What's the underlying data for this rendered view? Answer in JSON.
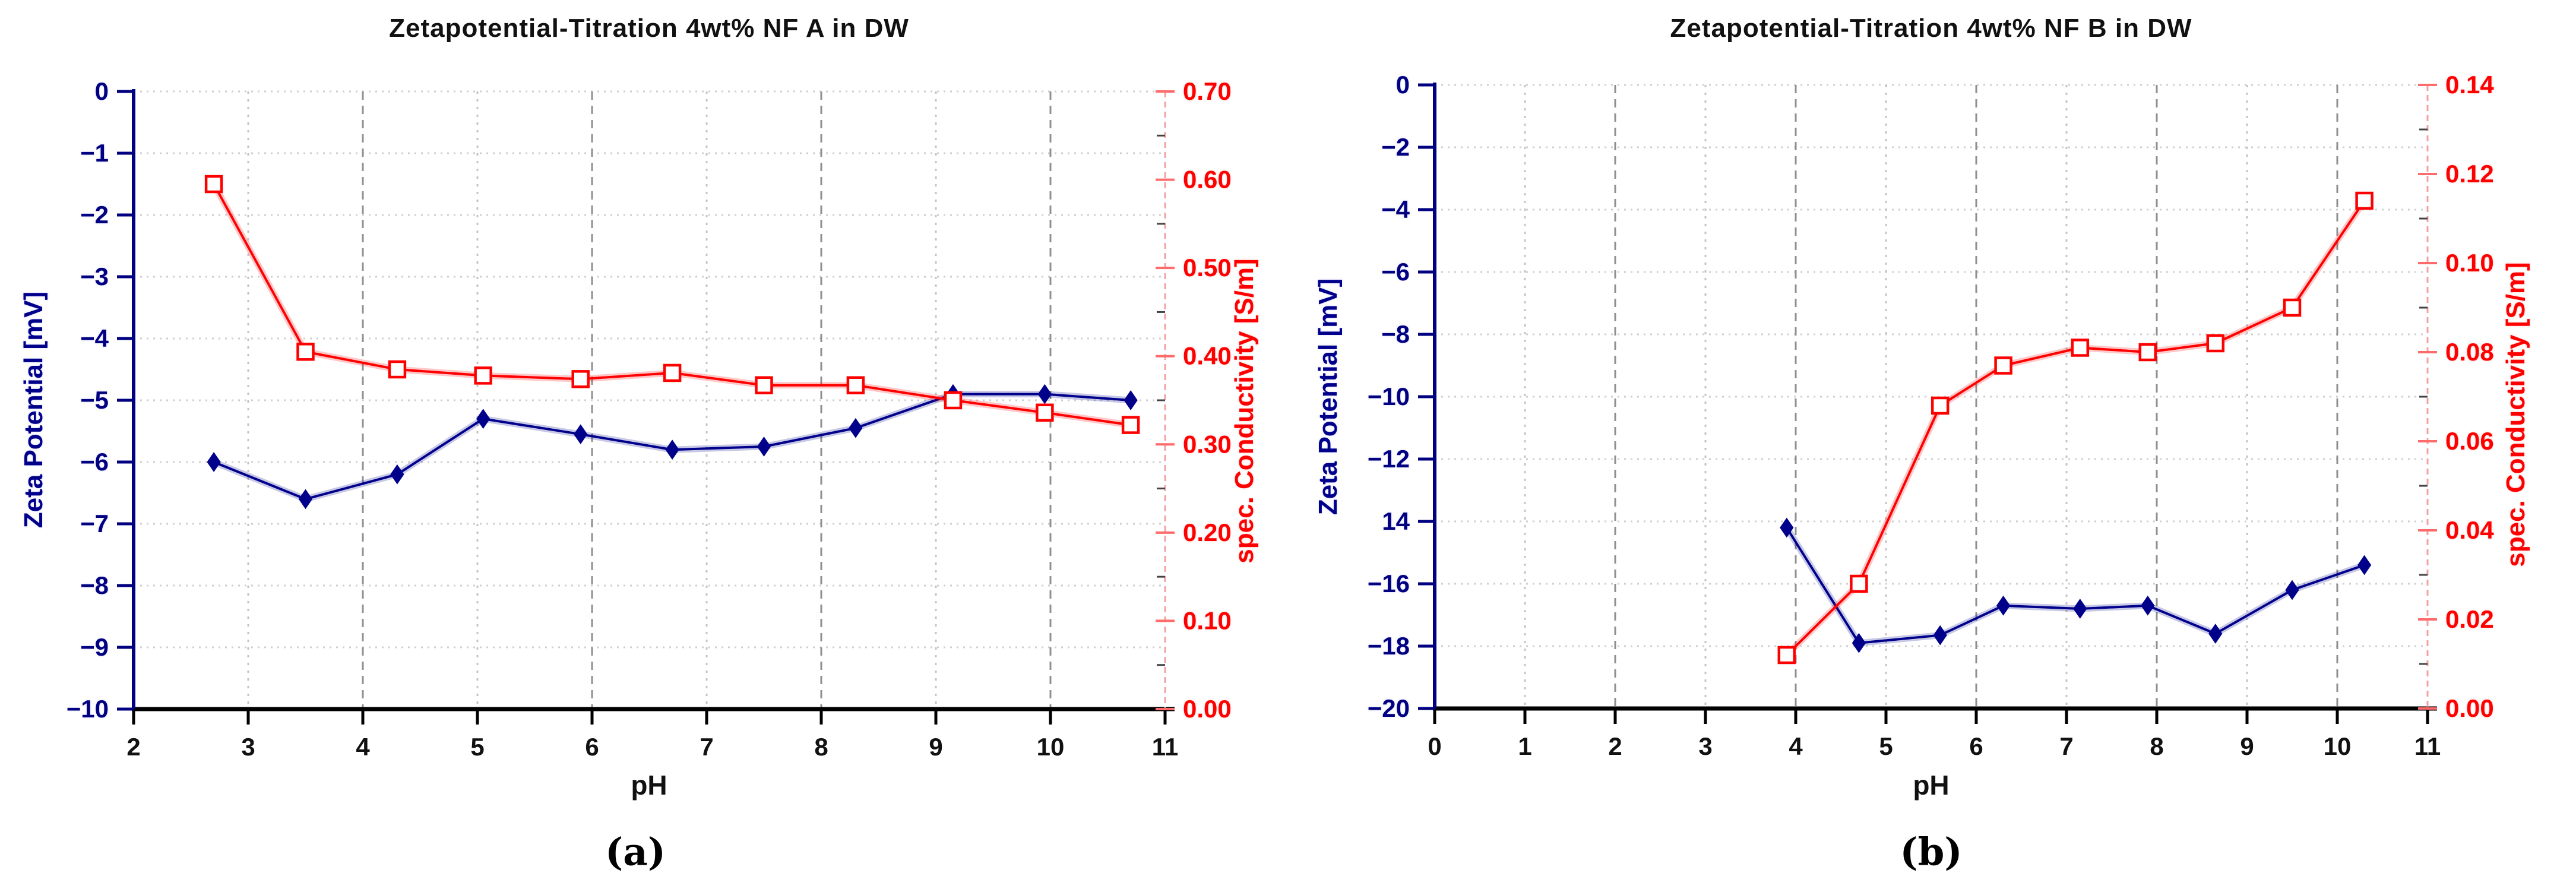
{
  "chart_data": [
    {
      "type": "line",
      "title": "Zetapotential-Titration 4wt% NF A in DW",
      "caption": "(a)",
      "xlabel": "pH",
      "ylabel_left": "Zeta Potential  [mV]",
      "ylabel_right": "spec. Conductivity  [S/m]",
      "xlim": [
        2,
        11
      ],
      "x_ticks": [
        "2",
        "3",
        "4",
        "5",
        "6",
        "7",
        "8",
        "9",
        "10",
        "11"
      ],
      "ylim_left": [
        -10,
        0
      ],
      "yticks_left": [
        "0",
        "−1",
        "−2",
        "−3",
        "−4",
        "−5",
        "−6",
        "−7",
        "−8",
        "−9",
        "−10"
      ],
      "ylim_right": [
        0,
        0.7
      ],
      "yticks_right": [
        "0.70",
        "0.60",
        "0.50",
        "0.40",
        "0.30",
        "0.20",
        "0.10",
        "0.00"
      ],
      "grid": true,
      "legend": "none",
      "series": [
        {
          "name": "zeta-potential",
          "axis": "left",
          "color": "#00008B",
          "marker": "diamond",
          "x": [
            2.7,
            3.5,
            4.3,
            5.05,
            5.9,
            6.7,
            7.5,
            8.3,
            9.15,
            9.95,
            10.7
          ],
          "y": [
            -6.0,
            -6.6,
            -6.2,
            -5.3,
            -5.55,
            -5.8,
            -5.75,
            -5.45,
            -4.9,
            -4.9,
            -5.0
          ]
        },
        {
          "name": "spec-conductivity",
          "axis": "right",
          "color": "#FF0000",
          "marker": "square-open",
          "x": [
            2.7,
            3.5,
            4.3,
            5.05,
            5.9,
            6.7,
            7.5,
            8.3,
            9.15,
            9.95,
            10.7
          ],
          "y": [
            0.595,
            0.405,
            0.385,
            0.378,
            0.374,
            0.381,
            0.367,
            0.367,
            0.35,
            0.336,
            0.322
          ]
        }
      ]
    },
    {
      "type": "line",
      "title": "Zetapotential-Titration  4wt%  NF B in DW",
      "caption": "(b)",
      "xlabel": "pH",
      "ylabel_left": "Zeta Potential  [mV]",
      "ylabel_right": "spec. Conductivity  [S/m]",
      "xlim": [
        0,
        11
      ],
      "x_ticks": [
        "0",
        "1",
        "2",
        "3",
        "4",
        "5",
        "6",
        "7",
        "8",
        "9",
        "10",
        "11"
      ],
      "ylim_left": [
        -20,
        0
      ],
      "yticks_left": [
        "0",
        "−2",
        "−4",
        "−6",
        "−8",
        "−10",
        "−12",
        "14",
        "−16",
        "−18",
        "−20"
      ],
      "ylim_right": [
        0,
        0.14
      ],
      "yticks_right": [
        "0.14",
        "0.12",
        "0.10",
        "0.08",
        "0.06",
        "0.04",
        "0.02",
        "0.00"
      ],
      "grid": true,
      "legend": "none",
      "series": [
        {
          "name": "zeta-potential",
          "axis": "left",
          "color": "#00008B",
          "marker": "diamond",
          "x": [
            3.9,
            4.7,
            5.6,
            6.3,
            7.15,
            7.9,
            8.65,
            9.5,
            10.3
          ],
          "y": [
            -14.2,
            -17.9,
            -17.65,
            -16.7,
            -16.8,
            -16.7,
            -17.6,
            -16.2,
            -15.4
          ]
        },
        {
          "name": "spec-conductivity",
          "axis": "right",
          "color": "#FF0000",
          "marker": "square-open",
          "x": [
            3.9,
            4.7,
            5.6,
            6.3,
            7.15,
            7.9,
            8.65,
            9.5,
            10.3
          ],
          "y": [
            0.012,
            0.028,
            0.068,
            0.077,
            0.081,
            0.08,
            0.082,
            0.09,
            0.114
          ]
        }
      ]
    }
  ]
}
